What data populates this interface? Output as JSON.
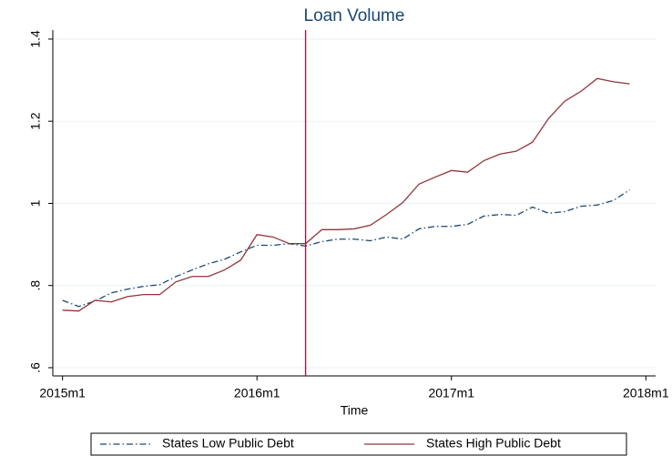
{
  "chart_data": {
    "type": "line",
    "title": "Loan Volume",
    "x_label": "Time",
    "x": [
      660,
      661,
      662,
      663,
      664,
      665,
      666,
      667,
      668,
      669,
      670,
      671,
      672,
      673,
      674,
      675,
      676,
      677,
      678,
      679,
      680,
      681,
      682,
      683,
      684,
      685,
      686,
      687,
      688,
      689,
      690,
      691,
      692,
      693,
      694,
      695
    ],
    "xlim": [
      659.4,
      696.6
    ],
    "xticks": [
      {
        "value": 660,
        "label": "2015m1"
      },
      {
        "value": 672,
        "label": "2016m1"
      },
      {
        "value": 684,
        "label": "2017m1"
      },
      {
        "value": 696,
        "label": "2018m1"
      }
    ],
    "ylim": [
      0.58,
      1.422
    ],
    "yticks": [
      {
        "value": 0.6,
        "label": ".6"
      },
      {
        "value": 0.8,
        "label": ".8"
      },
      1,
      1.2,
      1.4
    ],
    "grid": true,
    "xline": 675,
    "xline_color": "#c10534",
    "legend_position": "bottom",
    "series": [
      {
        "name": "States Low Public Debt",
        "color": "#1a476f",
        "dash": "dashdot",
        "values": [
          0.764,
          0.749,
          0.762,
          0.782,
          0.791,
          0.798,
          0.802,
          0.822,
          0.838,
          0.853,
          0.864,
          0.882,
          0.898,
          0.898,
          0.902,
          0.896,
          0.907,
          0.913,
          0.913,
          0.909,
          0.918,
          0.913,
          0.938,
          0.944,
          0.944,
          0.949,
          0.969,
          0.973,
          0.971,
          0.991,
          0.976,
          0.98,
          0.993,
          0.996,
          1.007,
          1.033
        ]
      },
      {
        "name": "States High Public Debt",
        "color": "#90353b",
        "dash": "solid",
        "values": [
          0.74,
          0.738,
          0.764,
          0.76,
          0.773,
          0.778,
          0.778,
          0.809,
          0.822,
          0.822,
          0.838,
          0.862,
          0.924,
          0.918,
          0.902,
          0.902,
          0.936,
          0.936,
          0.938,
          0.947,
          0.973,
          1.002,
          1.047,
          1.064,
          1.08,
          1.076,
          1.104,
          1.12,
          1.127,
          1.149,
          1.207,
          1.249,
          1.273,
          1.304,
          1.296,
          1.291
        ]
      }
    ]
  }
}
